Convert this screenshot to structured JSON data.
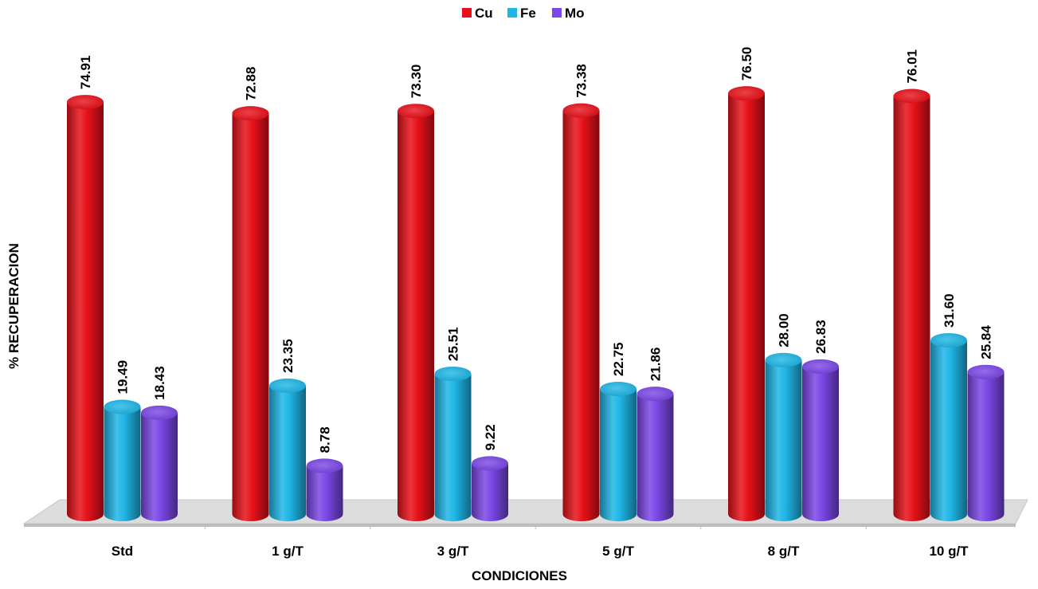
{
  "chart_data": {
    "type": "bar",
    "style": "3d-cylinder",
    "categories": [
      "Std",
      "1 g/T",
      "3 g/T",
      "5 g/T",
      "8 g/T",
      "10 g/T"
    ],
    "series": [
      {
        "name": "Cu",
        "color": "#e8111a",
        "values": [
          74.91,
          72.88,
          73.3,
          73.38,
          76.5,
          76.01
        ]
      },
      {
        "name": "Fe",
        "color": "#1fb6e6",
        "values": [
          19.49,
          23.35,
          25.51,
          22.75,
          28.0,
          31.6
        ]
      },
      {
        "name": "Mo",
        "color": "#7b47e6",
        "values": [
          18.43,
          8.78,
          9.22,
          21.86,
          26.83,
          25.84
        ]
      }
    ],
    "value_labels": [
      [
        "74.91",
        "72.88",
        "73.30",
        "73.38",
        "76.50",
        "76.01"
      ],
      [
        "19.49",
        "23.35",
        "25.51",
        "22.75",
        "28.00",
        "31.60"
      ],
      [
        "18.43",
        "8.78",
        "9.22",
        "21.86",
        "26.83",
        "25.84"
      ]
    ],
    "xlabel": "CONDICIONES",
    "ylabel": "% RECUPERACION",
    "ylim": [
      0,
      80
    ],
    "legend_position": "top-center",
    "grid": false
  }
}
